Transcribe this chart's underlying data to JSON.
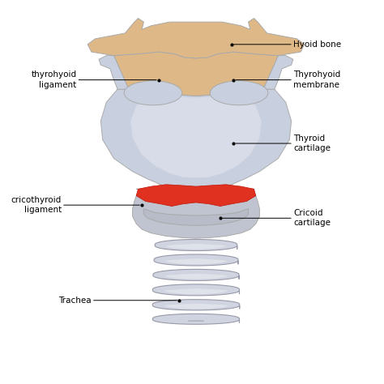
{
  "background_color": "#ffffff",
  "hyoid_color": "#DEB887",
  "thyroid_color": "#C8D0E0",
  "thyroid_inner_color": "#D8DCE8",
  "cricoid_color": "#C0C4D0",
  "trachea_color": "#D0D4E0",
  "trachea_dark": "#B0B4C0",
  "red_color": "#E03020",
  "outline": "#AAAAAA",
  "annotations": {
    "hyoid_bone": {
      "label": "Hyoid bone",
      "dot": [
        0.595,
        0.895
      ],
      "text": [
        0.76,
        0.895
      ]
    },
    "thyrohyoid_membrane": {
      "label": "Thyrohyoid\nmembrane",
      "dot": [
        0.6,
        0.8
      ],
      "text": [
        0.76,
        0.8
      ]
    },
    "thyrohyoid_ligament": {
      "label": "thyrohyoid\nligament",
      "dot": [
        0.4,
        0.8
      ],
      "text": [
        0.18,
        0.8
      ]
    },
    "thyroid_cartilage": {
      "label": "Thyroid\ncartilage",
      "dot": [
        0.6,
        0.63
      ],
      "text": [
        0.76,
        0.63
      ]
    },
    "cricothyroid_ligament": {
      "label": "cricothyroid\nligament",
      "dot": [
        0.355,
        0.465
      ],
      "text": [
        0.14,
        0.465
      ]
    },
    "cricoid_cartilage": {
      "label": "Cricoid\ncartilage",
      "dot": [
        0.565,
        0.43
      ],
      "text": [
        0.76,
        0.43
      ]
    },
    "trachea": {
      "label": "Trachea",
      "dot": [
        0.455,
        0.21
      ],
      "text": [
        0.22,
        0.21
      ]
    }
  }
}
